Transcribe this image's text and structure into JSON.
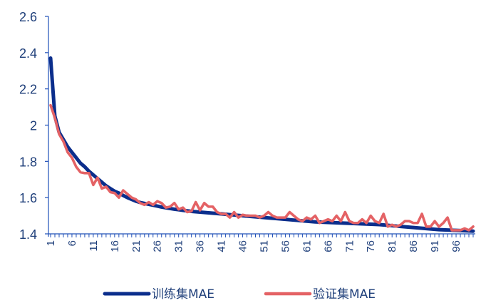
{
  "chart_data": {
    "type": "line",
    "title": "",
    "xlabel": "",
    "ylabel": "",
    "x_start": 1,
    "x_end": 100,
    "x_tick_labels": [
      "1",
      "6",
      "11",
      "16",
      "21",
      "26",
      "31",
      "36",
      "41",
      "46",
      "51",
      "56",
      "61",
      "66",
      "71",
      "76",
      "81",
      "86",
      "91",
      "96"
    ],
    "ylim": [
      1.4,
      2.6
    ],
    "y_ticks": [
      1.4,
      1.6,
      1.8,
      2,
      2.2,
      2.4,
      2.6
    ],
    "y_tick_labels": [
      "1.4",
      "1.6",
      "1.8",
      "2",
      "2.2",
      "2.4",
      "2.6"
    ],
    "grid": false,
    "legend_position": "bottom",
    "series": [
      {
        "name": "训练集MAE",
        "color": "#0b2e8c",
        "values": [
          2.37,
          2.05,
          1.96,
          1.92,
          1.88,
          1.85,
          1.82,
          1.79,
          1.77,
          1.745,
          1.725,
          1.705,
          1.685,
          1.665,
          1.65,
          1.635,
          1.625,
          1.612,
          1.6,
          1.59,
          1.58,
          1.573,
          1.568,
          1.563,
          1.558,
          1.553,
          1.548,
          1.544,
          1.54,
          1.536,
          1.533,
          1.53,
          1.527,
          1.524,
          1.522,
          1.52,
          1.518,
          1.516,
          1.514,
          1.512,
          1.51,
          1.508,
          1.506,
          1.504,
          1.502,
          1.5,
          1.498,
          1.496,
          1.494,
          1.492,
          1.49,
          1.488,
          1.486,
          1.484,
          1.482,
          1.48,
          1.478,
          1.476,
          1.474,
          1.472,
          1.47,
          1.468,
          1.466,
          1.465,
          1.464,
          1.463,
          1.462,
          1.461,
          1.46,
          1.459,
          1.458,
          1.457,
          1.456,
          1.455,
          1.454,
          1.453,
          1.452,
          1.451,
          1.449,
          1.447,
          1.445,
          1.443,
          1.441,
          1.439,
          1.437,
          1.435,
          1.433,
          1.431,
          1.429,
          1.427,
          1.425,
          1.423,
          1.422,
          1.421,
          1.42,
          1.419,
          1.418,
          1.417,
          1.416,
          1.415
        ]
      },
      {
        "name": "验证集MAE",
        "color": "#e46265",
        "values": [
          2.11,
          2.04,
          1.95,
          1.91,
          1.85,
          1.82,
          1.77,
          1.74,
          1.735,
          1.735,
          1.67,
          1.71,
          1.65,
          1.66,
          1.63,
          1.625,
          1.6,
          1.64,
          1.62,
          1.6,
          1.59,
          1.57,
          1.56,
          1.575,
          1.56,
          1.58,
          1.57,
          1.545,
          1.55,
          1.57,
          1.535,
          1.545,
          1.52,
          1.525,
          1.575,
          1.53,
          1.57,
          1.55,
          1.55,
          1.52,
          1.51,
          1.51,
          1.49,
          1.52,
          1.49,
          1.505,
          1.5,
          1.5,
          1.5,
          1.49,
          1.5,
          1.52,
          1.5,
          1.49,
          1.49,
          1.49,
          1.52,
          1.5,
          1.48,
          1.47,
          1.49,
          1.48,
          1.5,
          1.46,
          1.47,
          1.48,
          1.47,
          1.5,
          1.47,
          1.52,
          1.47,
          1.46,
          1.46,
          1.48,
          1.46,
          1.5,
          1.47,
          1.46,
          1.51,
          1.44,
          1.45,
          1.44,
          1.45,
          1.47,
          1.47,
          1.46,
          1.46,
          1.51,
          1.44,
          1.44,
          1.47,
          1.44,
          1.46,
          1.49,
          1.42,
          1.42,
          1.42,
          1.43,
          1.42,
          1.44
        ]
      }
    ]
  }
}
